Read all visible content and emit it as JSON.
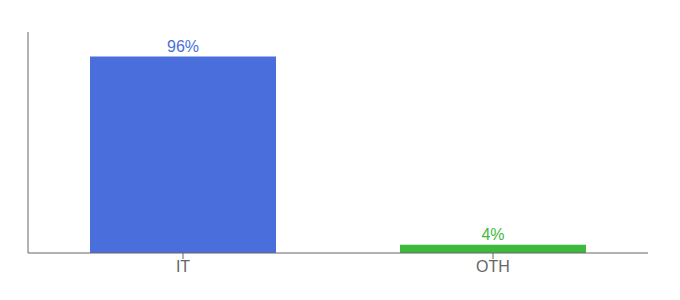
{
  "chart_data": {
    "type": "bar",
    "categories": [
      "IT",
      "OTH"
    ],
    "values": [
      96,
      4
    ],
    "value_labels": [
      "96%",
      "4%"
    ],
    "colors": [
      "#4a6fdc",
      "#3dba3d"
    ],
    "ylim": [
      0,
      108
    ],
    "data_labels": true,
    "tick_labels": "x",
    "grid": false
  }
}
